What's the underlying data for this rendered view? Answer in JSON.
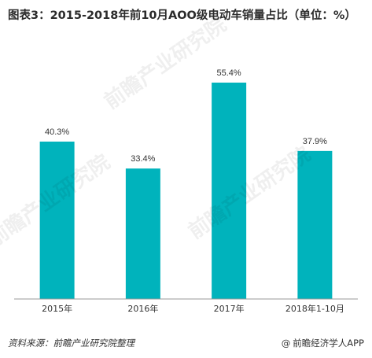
{
  "title": "图表3：2015-2018年前10月AOO级电动车销量占比（单位：%）",
  "source": "资料来源：前瞻产业研究院整理",
  "brand": {
    "symbol": "@",
    "name": "前瞻经济学人APP"
  },
  "watermark": "前瞻产业研究院",
  "colors": {
    "bar": "#00b3bc",
    "axis": "#999999",
    "text": "#333333"
  },
  "chart_data": {
    "type": "bar",
    "categories": [
      "2015年",
      "2016年",
      "2017年",
      "2018年1-10月"
    ],
    "values": [
      40.3,
      33.4,
      55.4,
      37.9
    ],
    "labels": [
      "40.3%",
      "33.4%",
      "55.4%",
      "37.9%"
    ],
    "title": "图表3：2015-2018年前10月AOO级电动车销量占比（单位：%）",
    "xlabel": "",
    "ylabel": "",
    "ylim": [
      0,
      60
    ],
    "grid": false,
    "legend": "none"
  }
}
